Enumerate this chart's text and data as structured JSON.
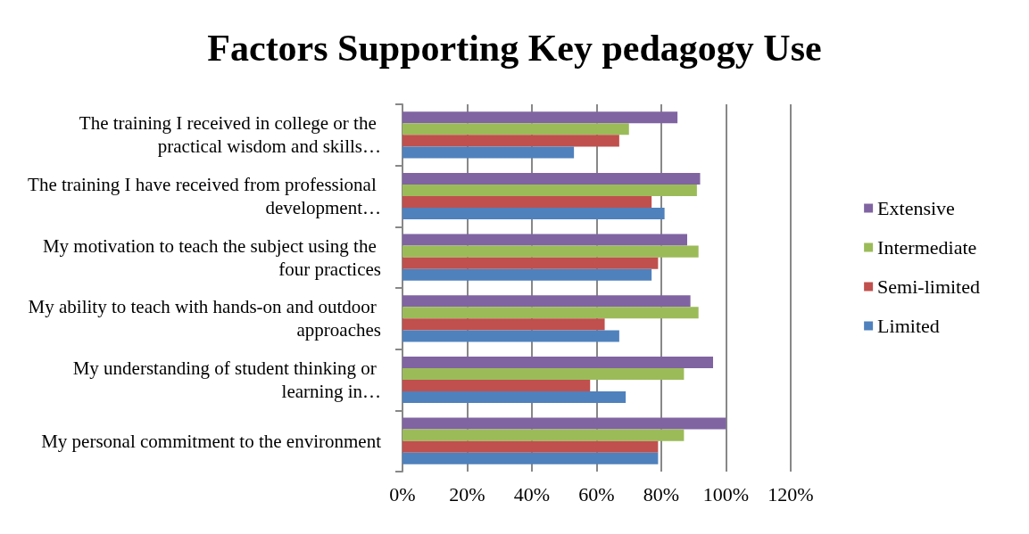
{
  "chart_data": {
    "type": "bar",
    "orientation": "horizontal",
    "title": "Factors Supporting Key pedagogy Use",
    "categories": [
      "The training I received in college or the practical wisdom and skills…",
      "The training I have received from professional development…",
      "My motivation to teach the subject using the four practices",
      "My ability to teach with hands-on and outdoor approaches",
      "My understanding of student thinking or learning in…",
      "My personal commitment to the environment"
    ],
    "series": [
      {
        "name": "Extensive",
        "color": "#8064a2",
        "values": [
          85,
          92,
          88,
          89,
          96,
          100
        ]
      },
      {
        "name": "Intermediate",
        "color": "#9bbb59",
        "values": [
          70,
          91,
          91.5,
          91.5,
          87,
          87
        ]
      },
      {
        "name": "Semi-limited",
        "color": "#c0504d",
        "values": [
          67,
          77,
          79,
          62.5,
          58,
          79
        ]
      },
      {
        "name": "Limited",
        "color": "#4f81bd",
        "values": [
          53,
          81,
          77,
          67,
          69,
          79
        ]
      }
    ],
    "xlim": [
      0,
      120
    ],
    "xticks": [
      {
        "value": 0,
        "label": "0%"
      },
      {
        "value": 20,
        "label": "20%"
      },
      {
        "value": 40,
        "label": "40%"
      },
      {
        "value": 60,
        "label": "60%"
      },
      {
        "value": 80,
        "label": "80%"
      },
      {
        "value": 100,
        "label": "100%"
      },
      {
        "value": 120,
        "label": "120%"
      }
    ],
    "grid": "x",
    "legend": "right"
  }
}
